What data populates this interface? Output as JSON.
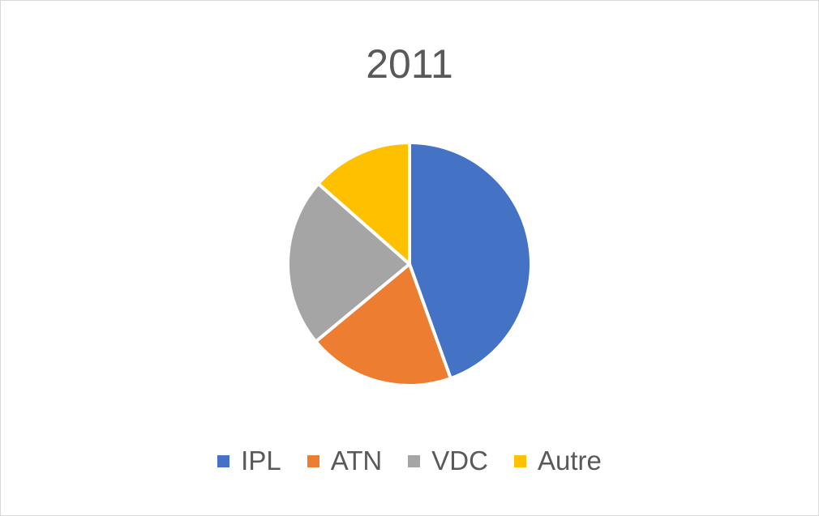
{
  "chart_data": {
    "type": "pie",
    "title": "2011",
    "categories": [
      "IPL",
      "ATN",
      "VDC",
      "Autre"
    ],
    "values": [
      44.5,
      19.5,
      22.5,
      13.5
    ],
    "colors": [
      "#4472c4",
      "#ed7d31",
      "#a5a5a5",
      "#ffc000"
    ],
    "legend_position": "bottom"
  }
}
